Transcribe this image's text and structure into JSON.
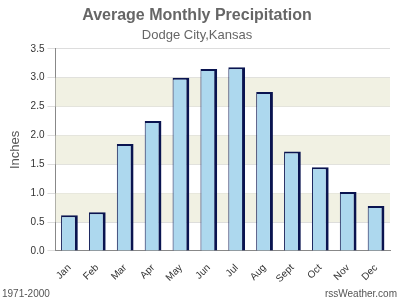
{
  "chart_data": {
    "type": "bar",
    "title": "Average Monthly Precipitation",
    "subtitle": "Dodge City,Kansas",
    "y_label": "Inches",
    "annotations": [
      "1971-2000",
      "rssWeather.com"
    ],
    "categories": [
      "Jan",
      "Feb",
      "Mar",
      "Apr",
      "May",
      "Jun",
      "Jul",
      "Aug",
      "Sept",
      "Oct",
      "Nov",
      "Dec"
    ],
    "values": [
      0.62,
      0.67,
      1.85,
      2.25,
      3.0,
      3.15,
      3.18,
      2.75,
      1.72,
      1.45,
      1.02,
      0.78
    ],
    "color": "#add8ee",
    "ylim": [
      0,
      3.5
    ],
    "yticks": [
      {
        "value": 0,
        "label": "0.0"
      },
      {
        "value": 0.5,
        "label": "0.5"
      },
      {
        "value": 1,
        "label": "1.0"
      },
      {
        "value": 1.5,
        "label": "1.5"
      },
      {
        "value": 2,
        "label": "2.0"
      },
      {
        "value": 2.5,
        "label": "2.5"
      },
      {
        "value": 3,
        "label": "3.0"
      },
      {
        "value": 3.5,
        "label": "3.5"
      }
    ],
    "grid": true
  }
}
